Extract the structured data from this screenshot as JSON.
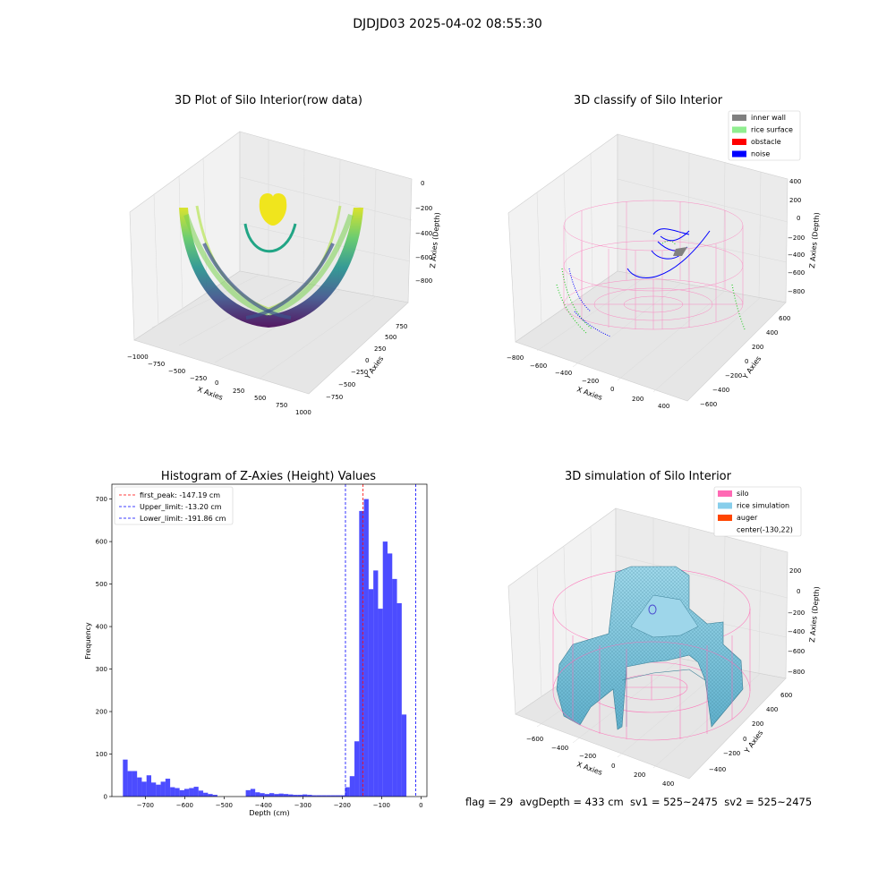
{
  "figure": {
    "suptitle": "DJDJD03 2025-04-02 08:55:30",
    "info_line": "flag = 29  avgDepth = 433 cm  sv1 = 525~2475  sv2 = 525~2475"
  },
  "panels": {
    "raw": {
      "title": "3D Plot of Silo Interior(row data)",
      "xlabel": "X Axies",
      "ylabel": "Y Axies",
      "zlabel": "Z Axies (Depth)",
      "xticks": [
        "−1000",
        "−750",
        "−500",
        "−250",
        "0",
        "250",
        "500",
        "750",
        "1000"
      ],
      "yticks": [
        "−750",
        "−500",
        "−250",
        "0",
        "250",
        "500",
        "750"
      ],
      "zticks": [
        "0",
        "−200",
        "−400",
        "−600",
        "−800"
      ]
    },
    "classify": {
      "title": "3D classify of Silo Interior",
      "xlabel": "X Axies",
      "ylabel": "Y Axies",
      "zlabel": "Z Axies (Depth)",
      "xticks": [
        "−800",
        "−600",
        "−400",
        "−200",
        "0",
        "200",
        "400"
      ],
      "yticks": [
        "−600",
        "−400",
        "−200",
        "0",
        "200",
        "400",
        "600"
      ],
      "zticks": [
        "400",
        "200",
        "0",
        "−200",
        "−400",
        "−600",
        "−800"
      ],
      "legend": [
        {
          "label": "inner wall",
          "color": "#808080"
        },
        {
          "label": "rice surface",
          "color": "#90ee90"
        },
        {
          "label": "obstacle",
          "color": "#ff0000"
        },
        {
          "label": "noise",
          "color": "#0000ff"
        }
      ]
    },
    "simulation": {
      "title": "3D simulation of Silo Interior",
      "xlabel": "X Axies",
      "ylabel": "Y Axies",
      "zlabel": "Z Axies (Depth)",
      "xticks": [
        "−600",
        "−400",
        "−200",
        "0",
        "200",
        "400"
      ],
      "yticks": [
        "−400",
        "−200",
        "0",
        "200",
        "400",
        "600"
      ],
      "zticks": [
        "200",
        "0",
        "−200",
        "−400",
        "−600",
        "−800"
      ],
      "legend": [
        {
          "label": "silo",
          "color": "#ff69b4"
        },
        {
          "label": "rice simulation",
          "color": "#87ceeb"
        },
        {
          "label": "auger",
          "color": "#ff4500"
        },
        {
          "label": "center(-130,22)",
          "color": "none"
        }
      ]
    }
  },
  "chart_data": [
    {
      "type": "scatter",
      "subtype": "3d",
      "title": "3D Plot of Silo Interior(row data)",
      "xlabel": "X Axies",
      "ylabel": "Y Axies",
      "zlabel": "Z Axies (Depth)",
      "xlim": [
        -1000,
        1000
      ],
      "ylim": [
        -750,
        750
      ],
      "zlim": [
        -900,
        0
      ],
      "colormap": "viridis"
    },
    {
      "type": "scatter",
      "subtype": "3d",
      "title": "3D classify of Silo Interior",
      "xlabel": "X Axies",
      "ylabel": "Y Axies",
      "zlabel": "Z Axies (Depth)",
      "xlim": [
        -800,
        400
      ],
      "ylim": [
        -600,
        600
      ],
      "zlim": [
        -800,
        400
      ],
      "series": [
        {
          "name": "inner wall",
          "color": "#808080"
        },
        {
          "name": "rice surface",
          "color": "#90ee90"
        },
        {
          "name": "obstacle",
          "color": "#ff0000"
        },
        {
          "name": "noise",
          "color": "#0000ff"
        }
      ],
      "legend_position": "top-right"
    },
    {
      "type": "bar",
      "subtype": "histogram",
      "title": "Histogram of Z-Axies (Height) Values",
      "xlabel": "Depth (cm)",
      "ylabel": "Frequency",
      "xlim": [
        -785,
        15
      ],
      "ylim": [
        0,
        735
      ],
      "xticks": [
        "−700",
        "−600",
        "−500",
        "−400",
        "−300",
        "−200",
        "−100",
        "0"
      ],
      "yticks": [
        "0",
        "100",
        "200",
        "300",
        "400",
        "500",
        "600",
        "700"
      ],
      "bin_width": 12,
      "bin_starts": [
        -757,
        -745,
        -733,
        -721,
        -709,
        -697,
        -685,
        -673,
        -661,
        -649,
        -637,
        -625,
        -613,
        -601,
        -589,
        -577,
        -565,
        -553,
        -541,
        -529,
        -517,
        -505,
        -493,
        -481,
        -469,
        -457,
        -445,
        -433,
        -421,
        -409,
        -397,
        -385,
        -373,
        -361,
        -349,
        -337,
        -325,
        -313,
        -301,
        -289,
        -277,
        -265,
        -253,
        -241,
        -229,
        -217,
        -205,
        -193,
        -181,
        -169,
        -157,
        -145,
        -133,
        -121,
        -109,
        -97,
        -85,
        -73,
        -61,
        -49,
        -37,
        -25,
        -13
      ],
      "values": [
        87,
        60,
        60,
        45,
        35,
        50,
        33,
        28,
        35,
        42,
        22,
        20,
        15,
        18,
        20,
        23,
        14,
        9,
        6,
        4,
        0,
        0,
        0,
        0,
        0,
        0,
        15,
        18,
        10,
        8,
        6,
        8,
        6,
        7,
        6,
        5,
        4,
        4,
        5,
        4,
        3,
        3,
        3,
        3,
        3,
        3,
        3,
        22,
        48,
        130,
        672,
        700,
        488,
        532,
        442,
        600,
        572,
        512,
        455,
        193,
        0,
        0,
        0
      ],
      "color": "#0000ff",
      "lines": [
        {
          "name": "first_peak: -147.19 cm",
          "x": -147.19,
          "color": "#ff0000"
        },
        {
          "name": "Upper_limit: -13.20 cm",
          "x": -13.2,
          "color": "#0000ff"
        },
        {
          "name": "Lower_limit: -191.86 cm",
          "x": -191.86,
          "color": "#0000ff"
        }
      ],
      "legend_position": "top-left",
      "grid": false
    },
    {
      "type": "other",
      "subtype": "3d-surface",
      "title": "3D simulation of Silo Interior",
      "xlabel": "X Axies",
      "ylabel": "Y Axies",
      "zlabel": "Z Axies (Depth)",
      "xlim": [
        -700,
        500
      ],
      "ylim": [
        -500,
        700
      ],
      "zlim": [
        -900,
        300
      ],
      "series": [
        {
          "name": "silo",
          "color": "#ff69b4"
        },
        {
          "name": "rice simulation",
          "color": "#87ceeb"
        },
        {
          "name": "auger",
          "color": "#ff4500"
        },
        {
          "name": "center(-130,22)"
        }
      ],
      "legend_position": "top-right"
    }
  ]
}
